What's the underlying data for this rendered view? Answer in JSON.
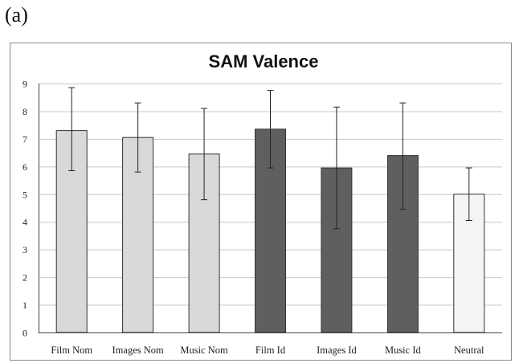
{
  "panel_label": "(a)",
  "chart_data": {
    "type": "bar",
    "title": "SAM Valence",
    "xlabel": "",
    "ylabel": "",
    "ylim": [
      0,
      9
    ],
    "yticks": [
      "0",
      "1",
      "2",
      "3",
      "4",
      "5",
      "6",
      "7",
      "8",
      "9"
    ],
    "grid": true,
    "categories": [
      "Film Nom",
      "Images Nom",
      "Music Nom",
      "Film Id",
      "Images Id",
      "Music Id",
      "Neutral"
    ],
    "values": [
      7.3,
      7.05,
      6.45,
      7.35,
      5.95,
      6.4,
      5.0
    ],
    "error_low": [
      5.85,
      5.8,
      4.8,
      5.95,
      3.75,
      4.45,
      4.05
    ],
    "error_high": [
      8.85,
      8.3,
      8.1,
      8.75,
      8.15,
      8.3,
      5.95
    ],
    "bar_colors": [
      "#d9d9d9",
      "#d9d9d9",
      "#d9d9d9",
      "#5f5f5f",
      "#5f5f5f",
      "#5f5f5f",
      "#f4f4f4"
    ]
  }
}
